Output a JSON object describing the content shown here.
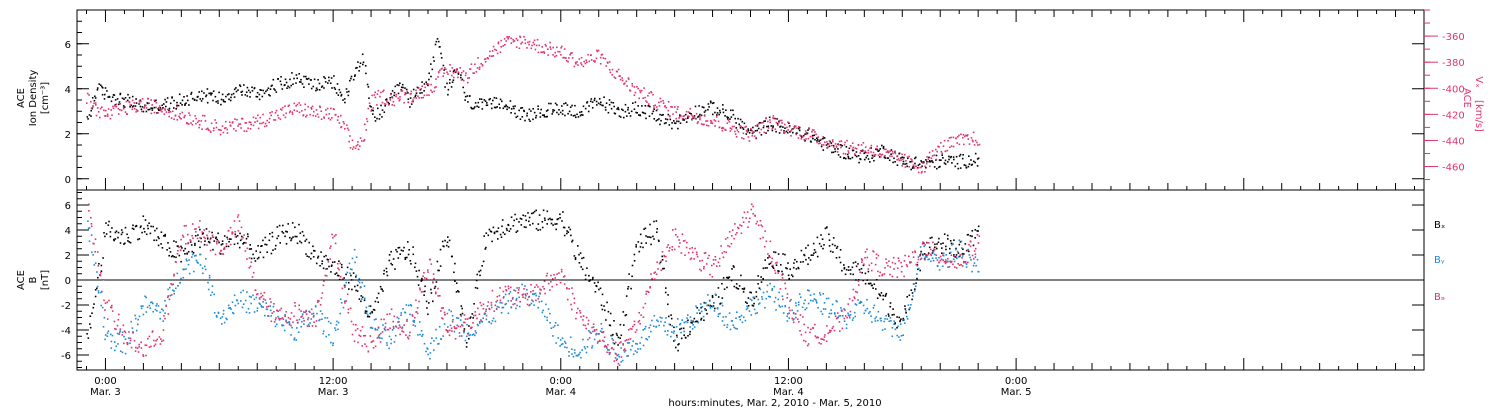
{
  "chart_data": {
    "type": "scatter",
    "time_axis": {
      "label": "hours:minutes, Mar. 2, 2010 - Mar. 5, 2010",
      "range_hours": [
        -1.5,
        69.5
      ],
      "ticks": [
        {
          "hour": 0,
          "time": "0:00",
          "date": "Mar. 3"
        },
        {
          "hour": 12,
          "time": "12:00",
          "date": "Mar. 3"
        },
        {
          "hour": 24,
          "time": "0:00",
          "date": "Mar. 4"
        },
        {
          "hour": 36,
          "time": "12:00",
          "date": "Mar. 4"
        },
        {
          "hour": 48,
          "time": "0:00",
          "date": "Mar. 5"
        }
      ]
    },
    "panels": [
      {
        "id": "density-speed",
        "left_axis": {
          "title": "ACE",
          "label": "Ion Density",
          "unit": "[cm⁻³]",
          "range": [
            -0.5,
            7.5
          ],
          "ticks": [
            0,
            2,
            4,
            6
          ],
          "color": "#000000"
        },
        "right_axis": {
          "title": "ACE",
          "label": "Vₓ",
          "unit": "[km/s]",
          "range": [
            -478,
            -340
          ],
          "ticks": [
            -460,
            -440,
            -420,
            -400,
            -380,
            -360
          ],
          "color": "#e0356b"
        },
        "series": [
          {
            "axis": "left",
            "color": "#000000",
            "x": [
              -1.0,
              -0.5,
              0.0,
              1.0,
              2.0,
              3.0,
              4.0,
              5.0,
              6.0,
              7.0,
              8.0,
              9.0,
              10.0,
              11.0,
              12.0,
              12.5,
              13.0,
              13.5,
              14.0,
              14.5,
              15.0,
              15.5,
              16.0,
              16.5,
              17.0,
              17.5,
              18.0,
              18.5,
              19.0,
              20.0,
              21.0,
              22.0,
              23.0,
              24.0,
              25.0,
              26.0,
              27.0,
              28.0,
              29.0,
              30.0,
              31.0,
              32.0,
              33.0,
              34.0,
              35.0,
              36.0,
              37.0,
              38.0,
              39.0,
              40.0,
              41.0,
              42.0,
              43.0,
              44.0,
              45.0,
              46.0
            ],
            "y": [
              2.5,
              4.0,
              3.8,
              3.5,
              3.2,
              3.3,
              3.5,
              3.8,
              3.6,
              4.0,
              3.8,
              4.2,
              4.5,
              4.2,
              4.3,
              3.5,
              4.5,
              5.5,
              2.8,
              3.0,
              3.5,
              4.2,
              3.5,
              4.0,
              4.5,
              6.2,
              3.8,
              5.0,
              3.5,
              3.2,
              3.5,
              2.8,
              3.0,
              3.2,
              3.0,
              3.5,
              3.0,
              3.2,
              2.8,
              2.5,
              3.0,
              3.2,
              2.8,
              2.0,
              2.5,
              2.2,
              2.0,
              1.5,
              1.2,
              1.0,
              1.3,
              0.8,
              0.7,
              0.8,
              0.8,
              0.9
            ]
          },
          {
            "axis": "right",
            "color": "#e0356b",
            "x": [
              -1.0,
              -0.5,
              0.0,
              1.0,
              2.0,
              3.0,
              4.0,
              5.0,
              6.0,
              7.0,
              8.0,
              9.0,
              10.0,
              11.0,
              12.0,
              12.5,
              13.0,
              13.5,
              14.0,
              14.5,
              15.0,
              16.0,
              17.0,
              18.0,
              19.0,
              20.0,
              21.0,
              22.0,
              23.0,
              24.0,
              25.0,
              26.0,
              27.0,
              28.0,
              29.0,
              30.0,
              31.0,
              32.0,
              33.0,
              34.0,
              35.0,
              36.0,
              37.0,
              38.0,
              39.0,
              40.0,
              41.0,
              42.0,
              43.0,
              44.0,
              45.0,
              46.0
            ],
            "y": [
              -408,
              -415,
              -420,
              -415,
              -412,
              -415,
              -420,
              -425,
              -430,
              -428,
              -425,
              -420,
              -415,
              -418,
              -420,
              -428,
              -445,
              -440,
              -410,
              -405,
              -408,
              -405,
              -400,
              -385,
              -390,
              -375,
              -365,
              -363,
              -368,
              -372,
              -380,
              -375,
              -390,
              -402,
              -410,
              -418,
              -420,
              -425,
              -430,
              -435,
              -425,
              -430,
              -435,
              -440,
              -445,
              -445,
              -450,
              -455,
              -460,
              -445,
              -440,
              -438
            ]
          }
        ]
      },
      {
        "id": "magnetic-field",
        "left_axis": {
          "title": "ACE",
          "label": "B",
          "unit": "[nT]",
          "range": [
            -7.2,
            7.2
          ],
          "ticks": [
            -6,
            -4,
            -2,
            0,
            2,
            4,
            6
          ],
          "color": "#000000"
        },
        "zero_line": true,
        "series": [
          {
            "name": "Bₓ",
            "color": "#000000",
            "x": [
              -1.0,
              0.0,
              1.0,
              2.0,
              3.0,
              4.0,
              5.0,
              6.0,
              7.0,
              8.0,
              9.0,
              10.0,
              11.0,
              12.0,
              13.0,
              14.0,
              15.0,
              16.0,
              17.0,
              18.0,
              19.0,
              20.0,
              21.0,
              22.0,
              23.0,
              24.0,
              25.0,
              26.0,
              27.0,
              28.0,
              29.0,
              30.0,
              31.0,
              32.0,
              33.0,
              34.0,
              35.0,
              36.0,
              37.0,
              38.0,
              39.0,
              40.0,
              41.0,
              42.0,
              43.0,
              44.0,
              45.0,
              46.0
            ],
            "y": [
              -5.0,
              4.0,
              3.5,
              4.5,
              3.0,
              2.0,
              3.5,
              3.0,
              3.5,
              2.0,
              3.5,
              4.0,
              2.0,
              1.0,
              0.0,
              -3.0,
              1.5,
              2.5,
              -2.0,
              4.0,
              -5.0,
              3.5,
              4.5,
              4.8,
              4.8,
              5.0,
              1.5,
              -1.0,
              -5.0,
              3.0,
              4.0,
              -5.0,
              -3.0,
              -2.0,
              0.5,
              -1.5,
              2.0,
              1.0,
              2.0,
              3.5,
              1.0,
              0.5,
              -1.5,
              -3.5,
              2.5,
              3.0,
              2.5,
              3.5
            ]
          },
          {
            "name": "Bᵧ",
            "color": "#1f8ad6",
            "x": [
              -1.0,
              0.0,
              1.0,
              2.0,
              3.0,
              4.0,
              5.0,
              6.0,
              7.0,
              8.0,
              9.0,
              10.0,
              11.0,
              12.0,
              13.0,
              14.0,
              15.0,
              16.0,
              17.0,
              18.0,
              19.0,
              20.0,
              21.0,
              22.0,
              23.0,
              24.0,
              25.0,
              26.0,
              27.0,
              28.0,
              29.0,
              30.0,
              31.0,
              32.0,
              33.0,
              34.0,
              35.0,
              36.0,
              37.0,
              38.0,
              39.0,
              40.0,
              41.0,
              42.0,
              43.0,
              44.0,
              45.0,
              46.0
            ],
            "y": [
              5.0,
              -4.5,
              -5.0,
              -2.0,
              -2.5,
              1.0,
              2.0,
              -3.0,
              -1.5,
              -2.0,
              -3.0,
              -4.0,
              -2.5,
              -4.5,
              2.0,
              -3.5,
              -5.0,
              -2.0,
              -5.5,
              -3.0,
              -4.0,
              -3.0,
              -2.0,
              -1.0,
              -2.0,
              -5.0,
              -5.5,
              -4.0,
              -6.0,
              -5.0,
              -3.5,
              -4.0,
              -3.0,
              -1.5,
              -3.5,
              -2.0,
              -1.0,
              -2.5,
              -1.5,
              -2.0,
              -3.0,
              -2.0,
              -3.5,
              -4.0,
              2.5,
              1.5,
              2.5,
              1.0
            ]
          },
          {
            "name": "Bₔ",
            "color": "#e0356b",
            "x": [
              -1.0,
              0.0,
              1.0,
              2.0,
              3.0,
              4.0,
              5.0,
              6.0,
              7.0,
              8.0,
              9.0,
              10.0,
              11.0,
              12.0,
              13.0,
              14.0,
              15.0,
              16.0,
              17.0,
              18.0,
              19.0,
              20.0,
              21.0,
              22.0,
              23.0,
              24.0,
              25.0,
              26.0,
              27.0,
              28.0,
              29.0,
              30.0,
              31.0,
              32.0,
              33.0,
              34.0,
              35.0,
              36.0,
              37.0,
              38.0,
              39.0,
              40.0,
              41.0,
              42.0,
              43.0,
              44.0,
              45.0,
              46.0
            ],
            "y": [
              6.5,
              -2.0,
              -4.5,
              -5.5,
              -4.0,
              3.5,
              4.0,
              2.5,
              4.5,
              -1.0,
              -3.0,
              -2.5,
              -3.0,
              3.5,
              -4.0,
              -5.0,
              -3.0,
              -4.0,
              1.5,
              -4.0,
              -3.5,
              -2.0,
              -1.0,
              -1.5,
              -0.5,
              0.5,
              -3.0,
              -4.5,
              -6.0,
              -3.5,
              1.0,
              3.5,
              2.0,
              1.0,
              3.5,
              5.5,
              2.5,
              -2.0,
              -4.5,
              -4.0,
              -3.0,
              2.0,
              1.0,
              1.0,
              2.5,
              2.0,
              1.5,
              3.0
            ]
          }
        ]
      }
    ]
  }
}
